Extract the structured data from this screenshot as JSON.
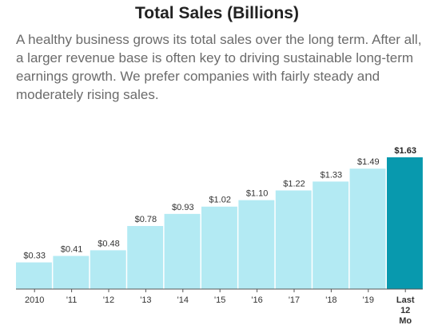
{
  "title": "Total Sales (Billions)",
  "description": "A healthy business grows its total sales over the long term. After all, a larger revenue base is often key to driving sustainable long-term earnings growth. We prefer companies with fairly steady and moderately rising sales.",
  "colors": {
    "bar": "#b3eaf3",
    "highlight": "#0899ae",
    "axis": "#555555"
  },
  "chart_data": {
    "type": "bar",
    "title": "Total Sales (Billions)",
    "xlabel": "",
    "ylabel": "",
    "categories": [
      "2010",
      "'11",
      "'12",
      "'13",
      "'14",
      "'15",
      "'16",
      "'17",
      "'18",
      "'19",
      "Last 12 Mo"
    ],
    "values": [
      0.33,
      0.41,
      0.48,
      0.78,
      0.93,
      1.02,
      1.1,
      1.22,
      1.33,
      1.49,
      1.63
    ],
    "value_labels": [
      "$0.33",
      "$0.41",
      "$0.48",
      "$0.78",
      "$0.93",
      "$1.02",
      "$1.10",
      "$1.22",
      "$1.33",
      "$1.49",
      "$1.63"
    ],
    "highlight_index": 10,
    "ylim": [
      0,
      1.63
    ],
    "grid": false
  }
}
